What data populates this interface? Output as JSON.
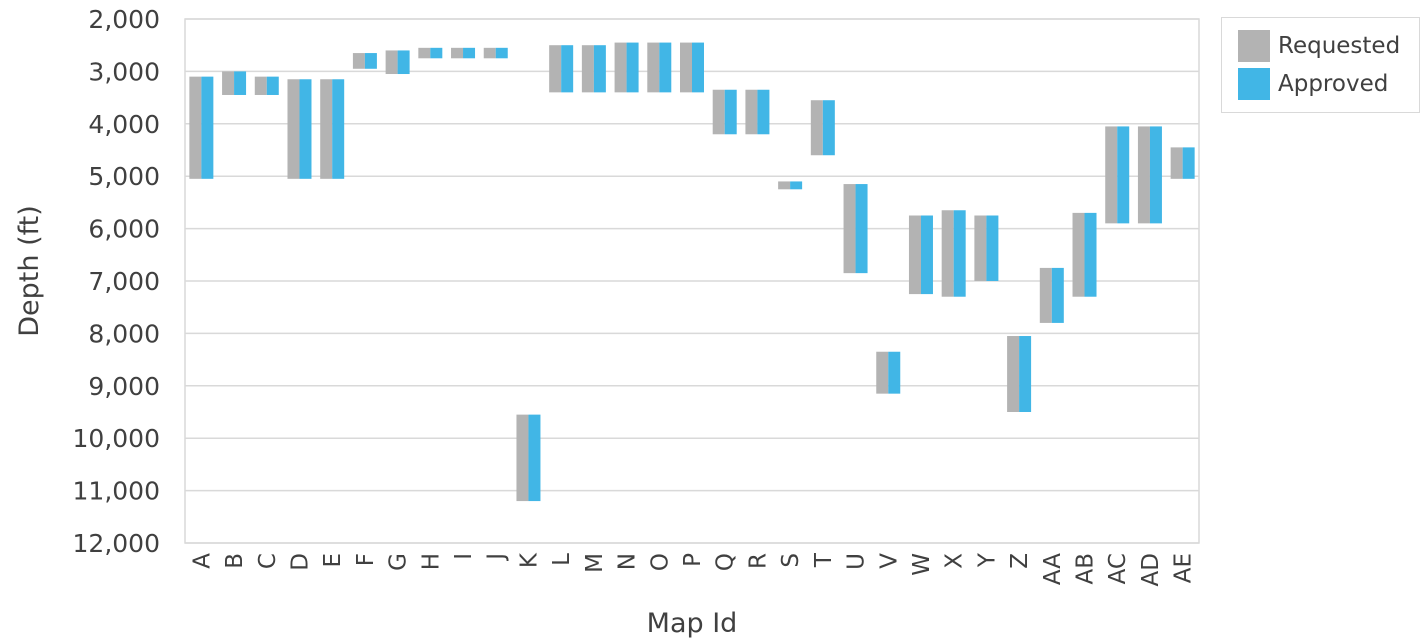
{
  "chart_data": {
    "type": "bar",
    "title": "",
    "xlabel": "Map Id",
    "ylabel": "Depth (ft)",
    "ylim": [
      2000,
      12000
    ],
    "y_reversed": true,
    "y_ticks": [
      "2,000",
      "3,000",
      "4,000",
      "5,000",
      "6,000",
      "7,000",
      "8,000",
      "9,000",
      "10,000",
      "11,000",
      "12,000"
    ],
    "grid": true,
    "legend_position": "top-right",
    "categories": [
      "A",
      "B",
      "C",
      "D",
      "E",
      "F",
      "G",
      "H",
      "I",
      "J",
      "K",
      "L",
      "M",
      "N",
      "O",
      "P",
      "Q",
      "R",
      "S",
      "T",
      "U",
      "V",
      "W",
      "X",
      "Y",
      "Z",
      "AA",
      "AB",
      "AC",
      "AD",
      "AE"
    ],
    "series": [
      {
        "name": "Requested",
        "color": "#b3b3b3",
        "ranges": [
          [
            3100,
            5050
          ],
          [
            3000,
            3450
          ],
          [
            3100,
            3450
          ],
          [
            3150,
            5050
          ],
          [
            3150,
            5050
          ],
          [
            2650,
            2950
          ],
          [
            2600,
            3050
          ],
          [
            2550,
            2750
          ],
          [
            2550,
            2750
          ],
          [
            2550,
            2750
          ],
          [
            9550,
            11200
          ],
          [
            2500,
            3400
          ],
          [
            2500,
            3400
          ],
          [
            2450,
            3400
          ],
          [
            2450,
            3400
          ],
          [
            2450,
            3400
          ],
          [
            3350,
            4200
          ],
          [
            3350,
            4200
          ],
          [
            5100,
            5250
          ],
          [
            3550,
            4600
          ],
          [
            5150,
            6850
          ],
          [
            8350,
            9150
          ],
          [
            5750,
            7250
          ],
          [
            5650,
            7300
          ],
          [
            5750,
            7000
          ],
          [
            8050,
            9500
          ],
          [
            6750,
            7800
          ],
          [
            5700,
            7300
          ],
          [
            4050,
            5900
          ],
          [
            4050,
            5900
          ],
          [
            4450,
            5050
          ]
        ]
      },
      {
        "name": "Approved",
        "color": "#41b6e6",
        "ranges": [
          [
            3100,
            5050
          ],
          [
            3000,
            3450
          ],
          [
            3100,
            3450
          ],
          [
            3150,
            5050
          ],
          [
            3150,
            5050
          ],
          [
            2650,
            2950
          ],
          [
            2600,
            3050
          ],
          [
            2550,
            2750
          ],
          [
            2550,
            2750
          ],
          [
            2550,
            2750
          ],
          [
            9550,
            11200
          ],
          [
            2500,
            3400
          ],
          [
            2500,
            3400
          ],
          [
            2450,
            3400
          ],
          [
            2450,
            3400
          ],
          [
            2450,
            3400
          ],
          [
            3350,
            4200
          ],
          [
            3350,
            4200
          ],
          [
            5100,
            5250
          ],
          [
            3550,
            4600
          ],
          [
            5150,
            6850
          ],
          [
            8350,
            9150
          ],
          [
            5750,
            7250
          ],
          [
            5650,
            7300
          ],
          [
            5750,
            7000
          ],
          [
            8050,
            9500
          ],
          [
            6750,
            7800
          ],
          [
            5700,
            7300
          ],
          [
            4050,
            5900
          ],
          [
            4050,
            5900
          ],
          [
            4450,
            5050
          ]
        ]
      }
    ]
  },
  "legend": {
    "items": [
      {
        "label": "Requested",
        "color": "#b3b3b3"
      },
      {
        "label": "Approved",
        "color": "#41b6e6"
      }
    ]
  }
}
